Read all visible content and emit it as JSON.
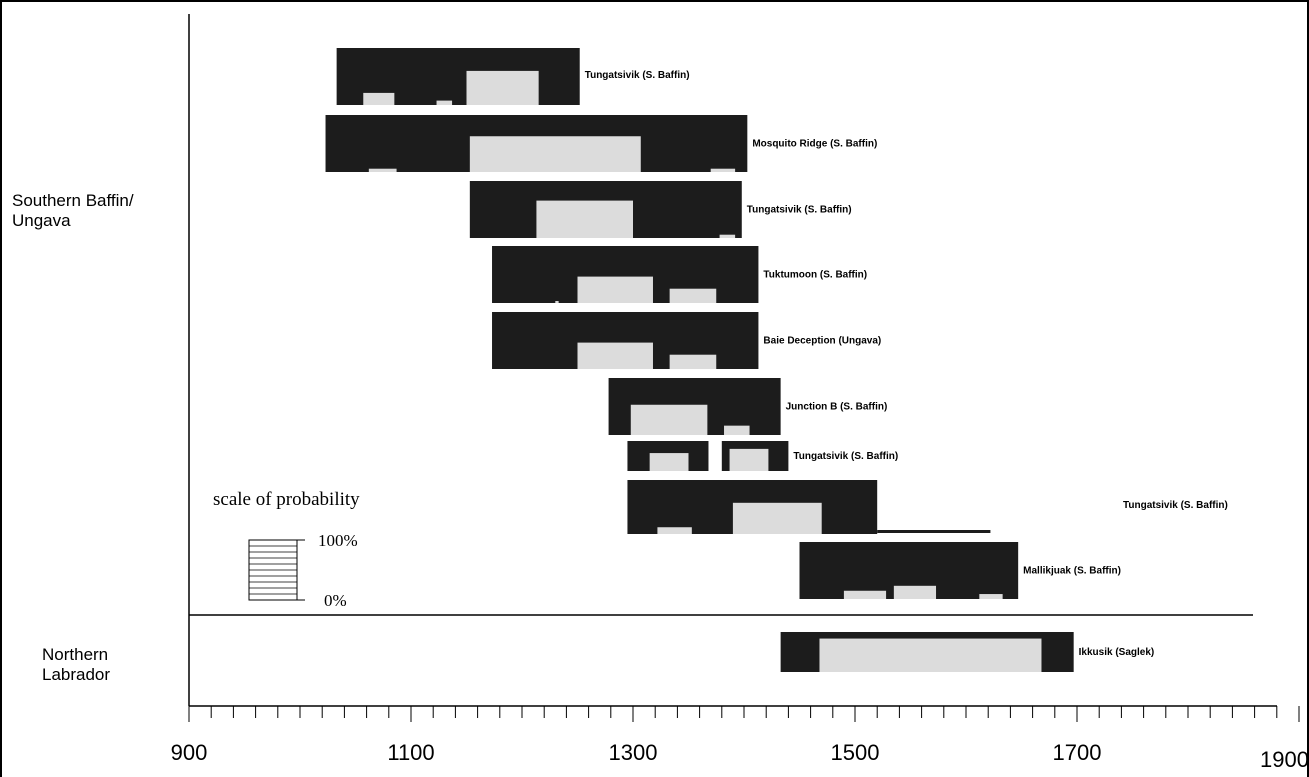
{
  "chart_data": {
    "type": "bar",
    "title": "",
    "xlabel": "",
    "ylabel": "",
    "xlim": [
      900,
      1900
    ],
    "x_ticks": [
      900,
      1100,
      1300,
      1500,
      1700,
      1900
    ],
    "minor_tick_step": 20,
    "groups": [
      {
        "name": "Southern Baffin/ Ungava",
        "lines": [
          "Southern Baffin/",
          "Ungava"
        ]
      },
      {
        "name": "Northern Labrador",
        "lines": [
          "Northern",
          "Labrador"
        ]
      }
    ],
    "sites": [
      {
        "name": "Tungatsivik (S. Baffin)",
        "group": 0,
        "range": [
          1033,
          1252
        ],
        "blocks": [
          [
            1057,
            1085,
            0.22
          ],
          [
            1123,
            1137,
            0.08
          ],
          [
            1150,
            1215,
            0.62
          ]
        ]
      },
      {
        "name": "Mosquito Ridge (S. Baffin)",
        "group": 0,
        "range": [
          1023,
          1403
        ],
        "blocks": [
          [
            1062,
            1087,
            0.06
          ],
          [
            1153,
            1307,
            0.65
          ],
          [
            1370,
            1392,
            0.06
          ]
        ]
      },
      {
        "name": "Tungatsivik (S. Baffin)",
        "group": 0,
        "range": [
          1153,
          1398
        ],
        "blocks": [
          [
            1213,
            1300,
            0.68
          ],
          [
            1378,
            1392,
            0.06
          ]
        ]
      },
      {
        "name": "Tuktumoon (S. Baffin)",
        "group": 0,
        "range": [
          1173,
          1413
        ],
        "blocks": [
          [
            1230,
            1233,
            0.03
          ],
          [
            1250,
            1318,
            0.48
          ],
          [
            1333,
            1375,
            0.26
          ]
        ]
      },
      {
        "name": "Baie Deception (Ungava)",
        "group": 0,
        "range": [
          1173,
          1413
        ],
        "blocks": [
          [
            1250,
            1318,
            0.48
          ],
          [
            1333,
            1375,
            0.26
          ]
        ]
      },
      {
        "name": "Junction B (S. Baffin)",
        "group": 0,
        "range": [
          1278,
          1433
        ],
        "blocks": [
          [
            1298,
            1367,
            0.55
          ],
          [
            1382,
            1405,
            0.17
          ]
        ]
      },
      {
        "name": "Tungatsivik (S. Baffin)",
        "group": 0,
        "range": [
          1295,
          1440
        ],
        "gap": [
          1368,
          1380
        ],
        "blocks": [
          [
            1315,
            1350,
            0.64
          ],
          [
            1387,
            1422,
            0.79
          ]
        ]
      },
      {
        "name": "Tungatsivik (S. Baffin)",
        "group": 0,
        "range": [
          1295,
          1520
        ],
        "tail": [
          1520,
          1622
        ],
        "blocks": [
          [
            1322,
            1353,
            0.13
          ],
          [
            1390,
            1470,
            0.6
          ]
        ]
      },
      {
        "name": "Mallikjuak (S. Baffin)",
        "group": 0,
        "range": [
          1450,
          1647
        ],
        "blocks": [
          [
            1490,
            1528,
            0.15
          ],
          [
            1535,
            1573,
            0.24
          ],
          [
            1612,
            1633,
            0.09
          ]
        ]
      },
      {
        "name": "Ikkusik (Saglek)",
        "group": 1,
        "range": [
          1433,
          1697
        ],
        "blocks": [
          [
            1468,
            1668,
            0.88
          ]
        ]
      }
    ],
    "probability_scale": {
      "title": "scale of probability",
      "max_label": "100%",
      "min_label": "0%",
      "steps": 10
    }
  }
}
